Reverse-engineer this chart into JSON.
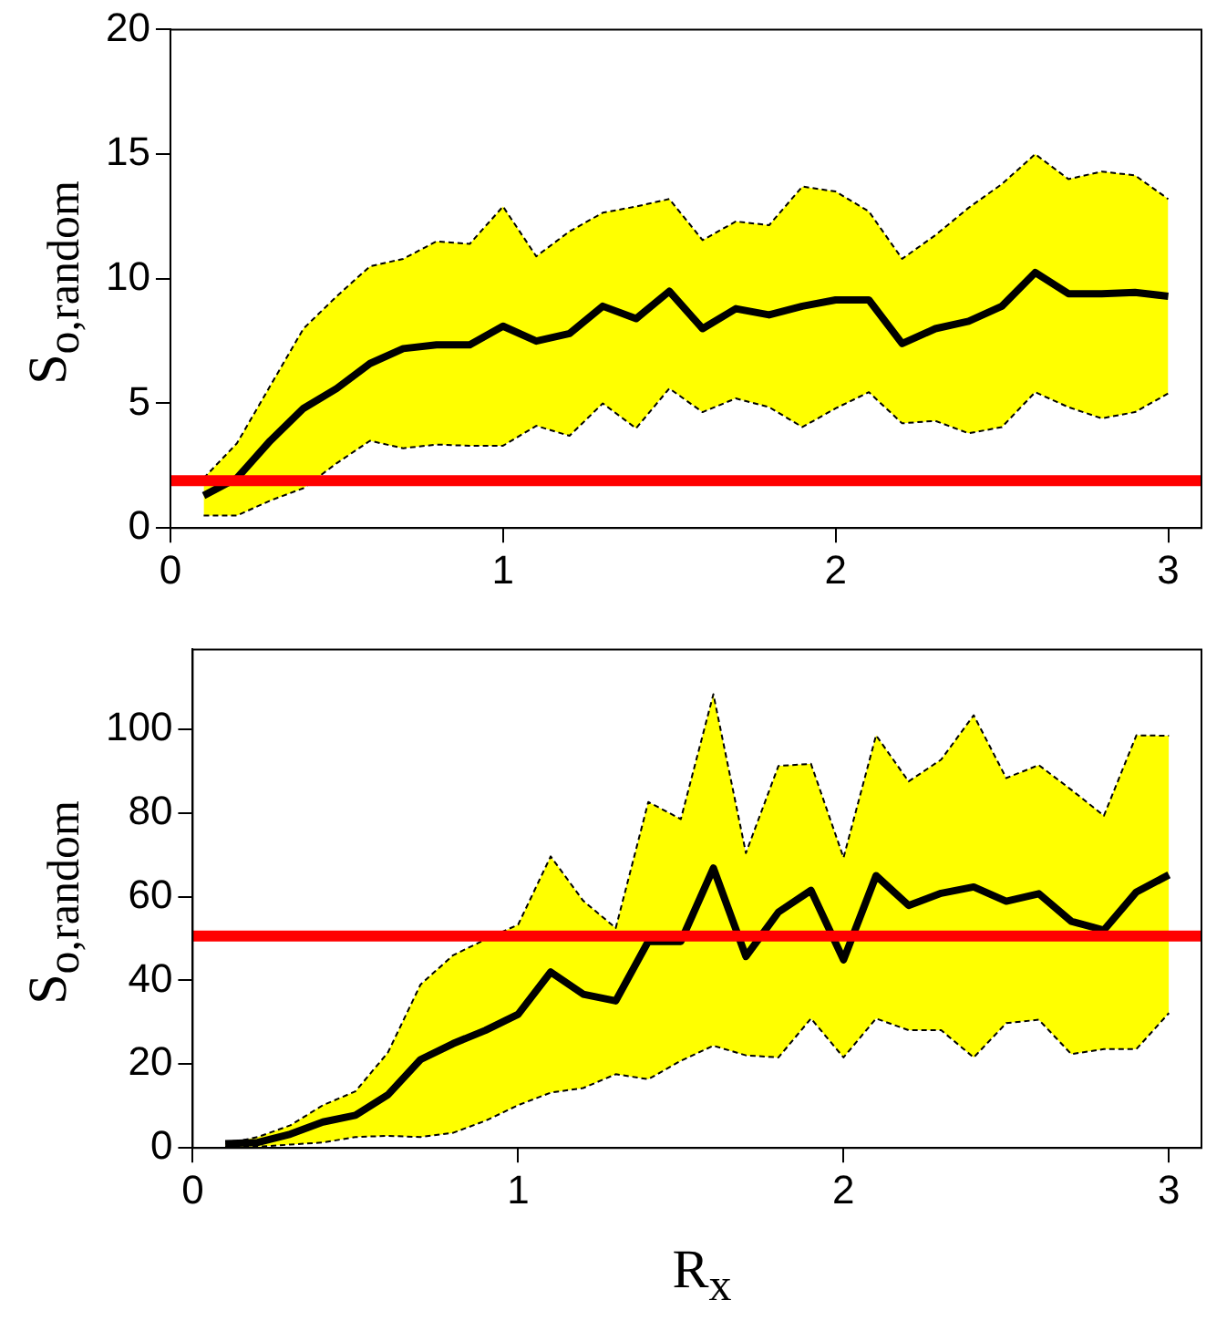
{
  "chart_data": [
    {
      "type": "line",
      "ylabel": "S$_{o,random}$",
      "x": [
        0.1,
        0.2,
        0.3,
        0.4,
        0.5,
        0.6,
        0.7,
        0.8,
        0.9,
        1.0,
        1.1,
        1.2,
        1.3,
        1.4,
        1.5,
        1.6,
        1.7,
        1.8,
        1.9,
        2.0,
        2.1,
        2.2,
        2.3,
        2.4,
        2.5,
        2.6,
        2.7,
        2.8,
        2.9,
        3.0
      ],
      "series": [
        {
          "color": "#000000",
          "values": [
            1.3,
            2.0,
            3.5,
            4.8,
            5.6,
            6.6,
            7.2,
            7.35,
            7.35,
            8.1,
            7.5,
            7.8,
            8.9,
            8.4,
            9.5,
            8.0,
            8.8,
            8.55,
            8.9,
            9.15,
            9.15,
            7.4,
            8.0,
            8.3,
            8.9,
            10.25,
            9.4,
            9.4,
            9.45,
            9.3
          ],
          "lower": [
            0.5,
            0.5,
            1.1,
            1.6,
            2.6,
            3.5,
            3.2,
            3.35,
            3.3,
            3.3,
            4.1,
            3.7,
            5.0,
            4.0,
            5.6,
            4.65,
            5.2,
            4.85,
            4.05,
            4.8,
            5.45,
            4.2,
            4.3,
            3.8,
            4.05,
            5.45,
            4.85,
            4.4,
            4.65,
            5.4
          ],
          "upper": [
            2.0,
            3.4,
            5.7,
            8.0,
            9.3,
            10.5,
            10.8,
            11.5,
            11.4,
            12.9,
            10.9,
            11.9,
            12.65,
            12.9,
            13.2,
            11.55,
            12.3,
            12.15,
            13.7,
            13.5,
            12.7,
            10.8,
            11.75,
            12.85,
            13.8,
            15.0,
            14.0,
            14.3,
            14.15,
            13.2
          ]
        },
        {
          "color": "#000000",
          "line_style": "dashed",
          "values": [
            0.5,
            0.5,
            1.1,
            1.6,
            2.6,
            3.5,
            3.2,
            3.35,
            3.3,
            3.3,
            4.1,
            3.7,
            5.0,
            4.0,
            5.6,
            4.65,
            5.2,
            4.85,
            4.05,
            4.8,
            5.45,
            4.2,
            4.3,
            3.8,
            4.05,
            5.45,
            4.85,
            4.4,
            4.65,
            5.4
          ]
        },
        {
          "color": "#000000",
          "line_style": "dashed",
          "values": [
            2.0,
            3.4,
            5.7,
            8.0,
            9.3,
            10.5,
            10.8,
            11.5,
            11.4,
            12.9,
            10.9,
            11.9,
            12.65,
            12.9,
            13.2,
            11.55,
            12.3,
            12.15,
            13.7,
            13.5,
            12.7,
            10.8,
            11.75,
            12.85,
            13.8,
            15.0,
            14.0,
            14.3,
            14.15,
            13.2
          ]
        }
      ],
      "ref_lines": [
        {
          "axis": "y",
          "value": 1.9,
          "color": "#ff0000"
        }
      ],
      "xlim": [
        0,
        3.1
      ],
      "xticks": [
        0,
        1,
        2,
        3
      ],
      "ylim": [
        0,
        20
      ],
      "yticks": [
        0,
        5,
        10,
        15,
        20
      ],
      "grid": false,
      "legend": false,
      "line_style": "solid",
      "marker": "none"
    },
    {
      "type": "line",
      "ylabel": "S$_{o,random}$",
      "xlabel": "R$_{x}$",
      "x": [
        0.1,
        0.2,
        0.3,
        0.4,
        0.5,
        0.6,
        0.7,
        0.8,
        0.9,
        1.0,
        1.1,
        1.2,
        1.3,
        1.4,
        1.5,
        1.6,
        1.7,
        1.8,
        1.9,
        2.0,
        2.1,
        2.2,
        2.3,
        2.4,
        2.5,
        2.6,
        2.7,
        2.8,
        2.9,
        3.0
      ],
      "series": [
        {
          "color": "#000000",
          "values": [
            1,
            1.3,
            3.3,
            6.2,
            7.8,
            12.7,
            21.1,
            24.9,
            28.1,
            31.9,
            42,
            36.7,
            35.1,
            49.3,
            49.3,
            66.8,
            45.7,
            56.3,
            61.5,
            44.9,
            65.0,
            57.9,
            60.8,
            62.3,
            58.9,
            60.7,
            54.1,
            52.0,
            61.1,
            65.2
          ],
          "lower": [
            0.3,
            0.3,
            0.8,
            1.3,
            2.6,
            2.9,
            2.6,
            3.6,
            6.5,
            10.2,
            13.2,
            14.3,
            17.6,
            16.4,
            20.8,
            24.4,
            22.1,
            21.6,
            30.9,
            21.6,
            30.9,
            28.1,
            28.1,
            21.6,
            29.8,
            30.6,
            22.4,
            23.6,
            23.6,
            32.2
          ],
          "upper": [
            1,
            2.6,
            5.4,
            10.2,
            13.5,
            22.8,
            39,
            46,
            49.8,
            53.3,
            69.6,
            59,
            52.5,
            82.6,
            78.5,
            108.3,
            70.4,
            91.2,
            91.7,
            69.3,
            98.5,
            87.5,
            92.7,
            103.3,
            88.3,
            91.4,
            85.5,
            79.3,
            98.5,
            98.4
          ]
        },
        {
          "color": "#000000",
          "line_style": "dashed",
          "values": [
            0.3,
            0.3,
            0.8,
            1.3,
            2.6,
            2.9,
            2.6,
            3.6,
            6.5,
            10.2,
            13.2,
            14.3,
            17.6,
            16.4,
            20.8,
            24.4,
            22.1,
            21.6,
            30.9,
            21.6,
            30.9,
            28.1,
            28.1,
            21.6,
            29.8,
            30.6,
            22.4,
            23.6,
            23.6,
            32.2
          ]
        },
        {
          "color": "#000000",
          "line_style": "dashed",
          "values": [
            1,
            2.6,
            5.4,
            10.2,
            13.5,
            22.8,
            39,
            46,
            49.8,
            53.3,
            69.6,
            59,
            52.5,
            82.6,
            78.5,
            108.3,
            70.4,
            91.2,
            91.7,
            69.3,
            98.5,
            87.5,
            92.7,
            103.3,
            88.3,
            91.4,
            85.5,
            79.3,
            98.5,
            98.4
          ]
        }
      ],
      "ref_lines": [
        {
          "axis": "y",
          "value": 50.6,
          "color": "#ff0000"
        }
      ],
      "xlim": [
        0,
        3.1
      ],
      "xticks": [
        0,
        1,
        2,
        3
      ],
      "ylim": [
        0,
        119
      ],
      "yticks": [
        0,
        20,
        40,
        60,
        80,
        100
      ],
      "grid": false,
      "legend": false,
      "line_style": "solid",
      "marker": "none"
    }
  ]
}
